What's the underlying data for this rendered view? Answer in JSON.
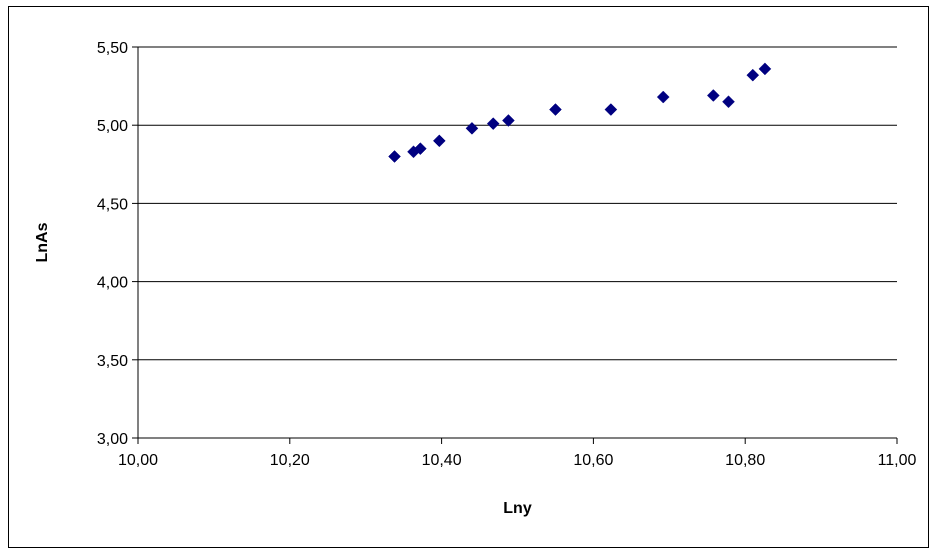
{
  "chart_data": {
    "type": "scatter",
    "xlabel": "Lny",
    "ylabel": "LnAs",
    "xlim": [
      10.0,
      11.0
    ],
    "ylim": [
      3.0,
      5.5
    ],
    "x_ticks": [
      10.0,
      10.2,
      10.4,
      10.6,
      10.8,
      11.0
    ],
    "y_ticks": [
      3.0,
      3.5,
      4.0,
      4.5,
      5.0,
      5.5
    ],
    "x_tick_labels": [
      "10,00",
      "10,20",
      "10,40",
      "10,60",
      "10,80",
      "11,00"
    ],
    "y_tick_labels": [
      "3,00",
      "3,50",
      "4,00",
      "4,50",
      "5,00",
      "5,50"
    ],
    "grid": "horizontal major gridlines",
    "legend": "none",
    "marker": "diamond",
    "marker_color": "#000080",
    "series": [
      {
        "x": [
          10.338,
          10.363,
          10.372,
          10.397,
          10.44,
          10.468,
          10.488,
          10.55,
          10.623,
          10.692,
          10.758,
          10.778,
          10.81,
          10.826
        ],
        "y": [
          4.8,
          4.83,
          4.85,
          4.9,
          4.98,
          5.01,
          5.03,
          5.1,
          5.1,
          5.18,
          5.19,
          5.15,
          5.32,
          5.36
        ]
      }
    ]
  }
}
